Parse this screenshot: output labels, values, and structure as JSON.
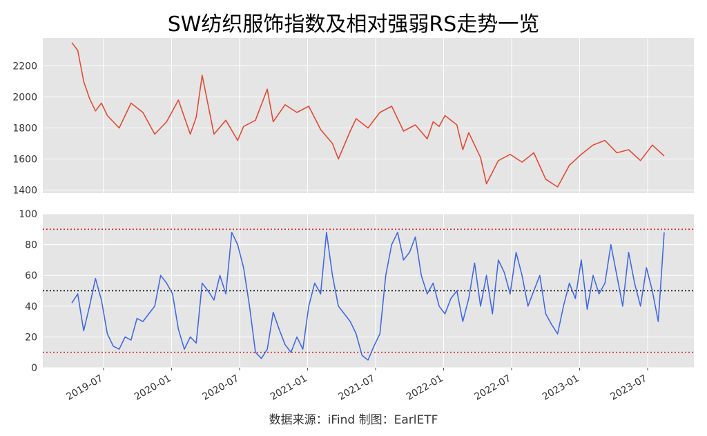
{
  "title": "SW纺织服饰指数及相对强弱RS走势一览",
  "footer": "数据来源：iFind 制图：EarlETF",
  "colors": {
    "index_line": "#e24a33",
    "rs_line": "#4169e1",
    "ref_red": "#d62728",
    "ref_black": "#000000",
    "panel_bg": "#e5e5e5",
    "grid": "#ffffff"
  },
  "chart_data": [
    {
      "type": "line",
      "name": "index",
      "ylim": [
        1380,
        2380
      ],
      "yticks": [
        1400,
        1600,
        1800,
        2000,
        2200
      ],
      "series": [
        {
          "name": "SW纺织服饰指数",
          "x": [
            0,
            0.01,
            0.02,
            0.03,
            0.04,
            0.05,
            0.06,
            0.08,
            0.1,
            0.12,
            0.14,
            0.16,
            0.18,
            0.2,
            0.21,
            0.22,
            0.24,
            0.26,
            0.28,
            0.29,
            0.31,
            0.33,
            0.34,
            0.36,
            0.38,
            0.4,
            0.42,
            0.44,
            0.45,
            0.47,
            0.48,
            0.5,
            0.52,
            0.54,
            0.56,
            0.58,
            0.6,
            0.61,
            0.62,
            0.63,
            0.65,
            0.66,
            0.67,
            0.69,
            0.7,
            0.72,
            0.74,
            0.76,
            0.78,
            0.8,
            0.82,
            0.84,
            0.86,
            0.88,
            0.9,
            0.92,
            0.94,
            0.96,
            0.98,
            1.0
          ],
          "y": [
            2350,
            2300,
            2100,
            1990,
            1910,
            1960,
            1880,
            1800,
            1960,
            1900,
            1760,
            1840,
            1980,
            1760,
            1870,
            2140,
            1760,
            1850,
            1720,
            1810,
            1850,
            2050,
            1840,
            1950,
            1900,
            1940,
            1790,
            1700,
            1600,
            1780,
            1860,
            1800,
            1900,
            1940,
            1780,
            1820,
            1730,
            1840,
            1810,
            1880,
            1820,
            1660,
            1770,
            1610,
            1440,
            1590,
            1630,
            1580,
            1640,
            1470,
            1420,
            1560,
            1630,
            1690,
            1720,
            1640,
            1660,
            1590,
            1690,
            1620
          ]
        }
      ]
    },
    {
      "type": "line",
      "name": "rs",
      "ylim": [
        0,
        100
      ],
      "yticks": [
        0,
        20,
        40,
        60,
        80,
        100
      ],
      "xlabel_ticks": [
        "2019-07",
        "2020-01",
        "2020-07",
        "2021-01",
        "2021-07",
        "2022-01",
        "2022-07",
        "2023-01",
        "2023-07"
      ],
      "ref_lines": [
        {
          "y": 90,
          "style": "red-dotted"
        },
        {
          "y": 50,
          "style": "black-dotted"
        },
        {
          "y": 10,
          "style": "red-dotted"
        }
      ],
      "series": [
        {
          "name": "相对强弱RS",
          "x": [
            0,
            0.01,
            0.02,
            0.03,
            0.04,
            0.05,
            0.06,
            0.07,
            0.08,
            0.09,
            0.1,
            0.11,
            0.12,
            0.13,
            0.14,
            0.15,
            0.16,
            0.17,
            0.18,
            0.19,
            0.2,
            0.21,
            0.22,
            0.23,
            0.24,
            0.25,
            0.26,
            0.27,
            0.28,
            0.29,
            0.3,
            0.31,
            0.32,
            0.33,
            0.34,
            0.35,
            0.36,
            0.37,
            0.38,
            0.39,
            0.4,
            0.41,
            0.42,
            0.43,
            0.44,
            0.45,
            0.46,
            0.47,
            0.48,
            0.49,
            0.5,
            0.51,
            0.52,
            0.53,
            0.54,
            0.55,
            0.56,
            0.57,
            0.58,
            0.59,
            0.6,
            0.61,
            0.62,
            0.63,
            0.64,
            0.65,
            0.66,
            0.67,
            0.68,
            0.69,
            0.7,
            0.71,
            0.72,
            0.73,
            0.74,
            0.75,
            0.76,
            0.77,
            0.78,
            0.79,
            0.8,
            0.81,
            0.82,
            0.83,
            0.84,
            0.85,
            0.86,
            0.87,
            0.88,
            0.89,
            0.9,
            0.91,
            0.92,
            0.93,
            0.94,
            0.95,
            0.96,
            0.97,
            0.98,
            0.99,
            1.0
          ],
          "y": [
            42,
            48,
            24,
            40,
            58,
            44,
            22,
            14,
            12,
            20,
            18,
            32,
            30,
            35,
            40,
            60,
            55,
            48,
            25,
            12,
            20,
            16,
            55,
            50,
            44,
            60,
            48,
            88,
            80,
            65,
            40,
            10,
            6,
            12,
            36,
            25,
            15,
            10,
            20,
            12,
            40,
            55,
            48,
            88,
            60,
            40,
            35,
            30,
            22,
            8,
            5,
            14,
            22,
            60,
            80,
            88,
            70,
            75,
            85,
            60,
            48,
            55,
            40,
            35,
            45,
            50,
            30,
            45,
            68,
            40,
            60,
            35,
            70,
            62,
            48,
            75,
            60,
            40,
            50,
            60,
            35,
            28,
            22,
            40,
            55,
            45,
            70,
            38,
            60,
            48,
            55,
            80,
            60,
            40,
            75,
            55,
            40,
            65,
            50,
            30,
            88
          ]
        }
      ]
    }
  ]
}
